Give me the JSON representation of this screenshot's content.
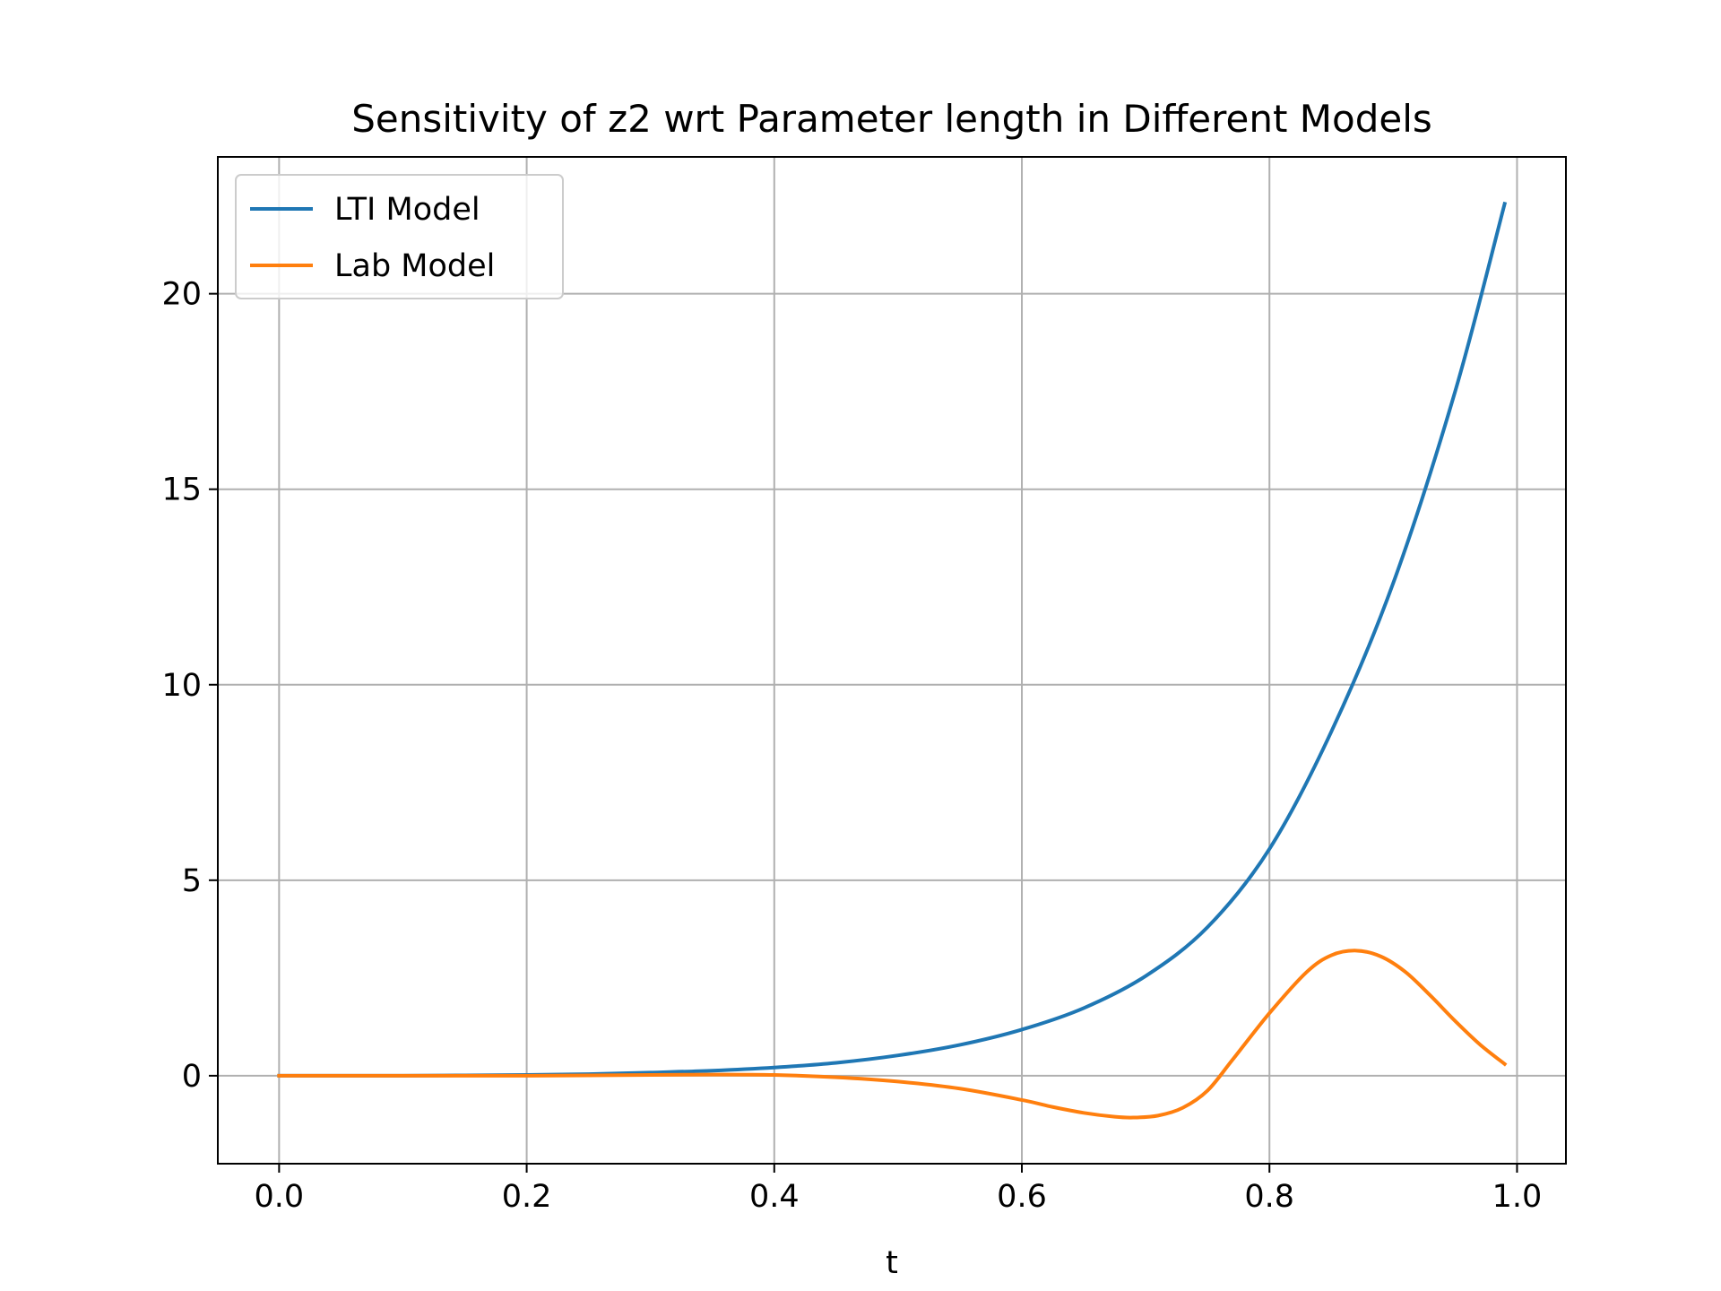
{
  "chart_data": {
    "type": "line",
    "title": "Sensitivity of z2 wrt Parameter length in Different Models",
    "xlabel": "t",
    "ylabel": "",
    "xlim": [
      -0.0495,
      1.0395
    ],
    "ylim": [
      -2.25,
      23.5
    ],
    "xticks": [
      0.0,
      0.2,
      0.4,
      0.6,
      0.8,
      1.0
    ],
    "xtick_labels": [
      "0.0",
      "0.2",
      "0.4",
      "0.6",
      "0.8",
      "1.0"
    ],
    "yticks": [
      0,
      5,
      10,
      15,
      20
    ],
    "ytick_labels": [
      "0",
      "5",
      "10",
      "15",
      "20"
    ],
    "grid": true,
    "legend_position": "upper-left",
    "series": [
      {
        "name": "LTI Model",
        "color": "#1f77b4",
        "x": [
          0.0,
          0.05,
          0.1,
          0.15,
          0.2,
          0.25,
          0.3,
          0.35,
          0.4,
          0.45,
          0.5,
          0.55,
          0.6,
          0.65,
          0.7,
          0.75,
          0.8,
          0.85,
          0.9,
          0.95,
          0.99
        ],
        "y": [
          0.0,
          0.0,
          0.0,
          0.01,
          0.02,
          0.04,
          0.08,
          0.13,
          0.21,
          0.33,
          0.52,
          0.79,
          1.18,
          1.73,
          2.55,
          3.8,
          5.8,
          8.8,
          12.6,
          17.5,
          22.3
        ]
      },
      {
        "name": "Lab Model",
        "color": "#ff7f0e",
        "x": [
          0.0,
          0.05,
          0.1,
          0.15,
          0.2,
          0.25,
          0.3,
          0.35,
          0.4,
          0.45,
          0.5,
          0.55,
          0.6,
          0.625,
          0.65,
          0.675,
          0.69,
          0.71,
          0.73,
          0.75,
          0.77,
          0.8,
          0.83,
          0.85,
          0.87,
          0.89,
          0.91,
          0.93,
          0.95,
          0.97,
          0.99
        ],
        "y": [
          0.0,
          0.0,
          0.0,
          0.0,
          0.0,
          0.01,
          0.02,
          0.03,
          0.02,
          -0.04,
          -0.15,
          -0.33,
          -0.62,
          -0.8,
          -0.95,
          -1.05,
          -1.07,
          -1.02,
          -0.82,
          -0.38,
          0.4,
          1.6,
          2.65,
          3.08,
          3.2,
          3.05,
          2.65,
          2.05,
          1.4,
          0.8,
          0.3
        ]
      }
    ]
  }
}
